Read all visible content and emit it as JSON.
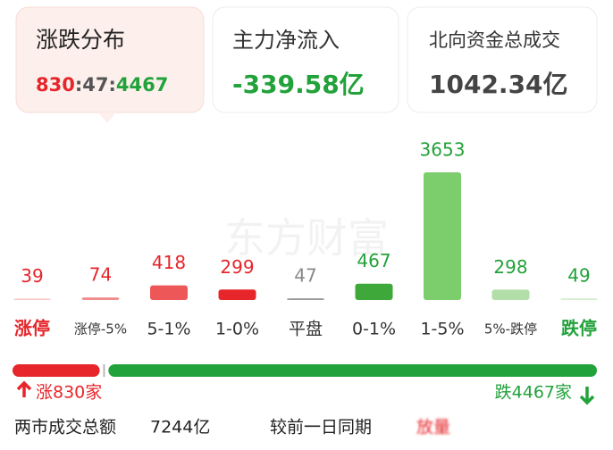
{
  "cards": [
    {
      "title": "涨跌分布",
      "up": 830,
      "separator": ":",
      "flat": 47,
      "down": 4467
    },
    {
      "title": "主力净流入",
      "value": "-339.58亿"
    },
    {
      "title": "北向资金总成交",
      "value": "1042.34亿"
    }
  ],
  "watermark": "东方财富",
  "distribution": {
    "categories": [
      "涨停",
      "涨停-5%",
      "5-1%",
      "1-0%",
      "平盘",
      "0-1%",
      "1-5%",
      "5%-跌停",
      "跌停"
    ],
    "values": [
      39,
      74,
      418,
      299,
      47,
      467,
      3653,
      298,
      49
    ],
    "colors": [
      "#f7c6c6",
      "#f08c8c",
      "#ee5757",
      "#e6262b",
      "#9a9a9a",
      "#3ea83a",
      "#7ccd6c",
      "#b2dea8",
      "#d6edd0"
    ],
    "label_colors": [
      "#e6262b",
      "#e6262b",
      "#e6262b",
      "#e6262b",
      "#888888",
      "#22a23a",
      "#22a23a",
      "#22a23a",
      "#22a23a"
    ]
  },
  "breadth": {
    "up_text": "涨830家",
    "down_text": "跌4467家"
  },
  "footer": {
    "label": "两市成交总额",
    "value": "7244亿",
    "compare_label": "较前一日同期",
    "compare_value": "放量"
  }
}
